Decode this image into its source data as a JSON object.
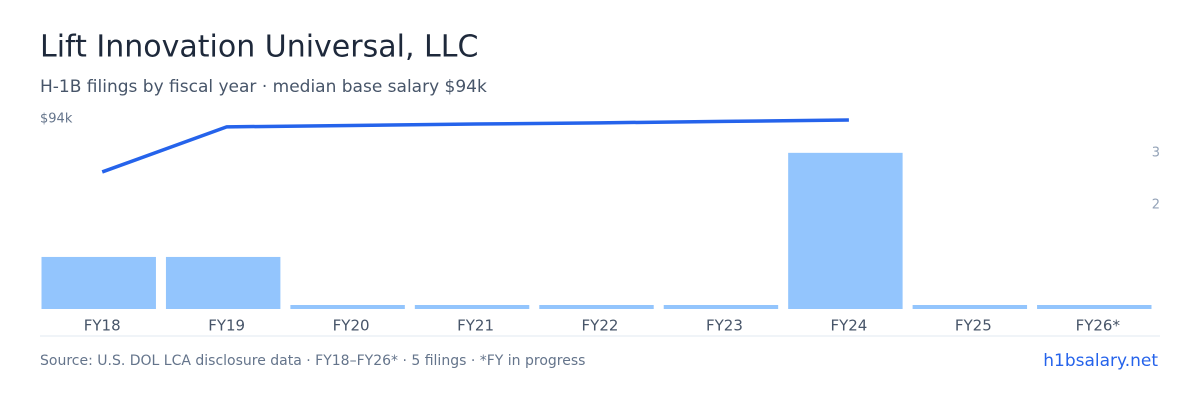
{
  "chart_data": {
    "type": "bar-line",
    "title": "Lift Innovation Universal, LLC",
    "subtitle": "H-1B filings by fiscal year · median base salary $94k",
    "categories": [
      "FY18",
      "FY19",
      "FY20",
      "FY21",
      "FY22",
      "FY23",
      "FY24",
      "FY25",
      "FY26*"
    ],
    "series": [
      {
        "name": "Filings",
        "type": "bar",
        "axis": "y2",
        "color": "#93c5fd",
        "values": [
          1,
          1,
          0,
          0,
          0,
          0,
          3,
          0,
          0
        ]
      },
      {
        "name": "Median base salary",
        "type": "line",
        "color": "#2563eb",
        "values": [
          67800,
          90100,
          90800,
          91500,
          92100,
          92800,
          93500,
          null,
          null
        ]
      }
    ],
    "ylim": [
      0,
      94000
    ],
    "yticks": [
      {
        "value": 94000,
        "label": "$94k"
      }
    ],
    "y2lim": [
      0,
      3.65
    ],
    "y2ticks": [
      3,
      2
    ],
    "source": "Source: U.S. DOL LCA disclosure data · FY18–FY26* · 5 filings · *FY in progress",
    "brand": "h1bsalary.net"
  }
}
